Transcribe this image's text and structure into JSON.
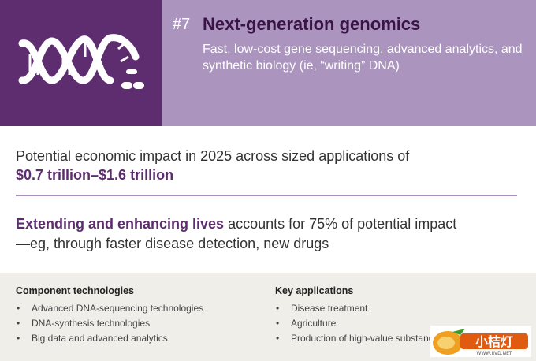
{
  "header": {
    "number": "#7",
    "title": "Next-generation genomics",
    "subtitle": "Fast, low-cost gene sequencing, advanced analytics, and synthetic biology (ie, “writing” DNA)",
    "icon": "dna-pills-icon",
    "colors": {
      "dark_purple": "#5e2d70",
      "light_purple": "#ab94bd"
    }
  },
  "impact": {
    "text": "Potential economic impact in 2025 across sized applications of",
    "value": "$0.7 trillion–$1.6 trillion"
  },
  "lives": {
    "bold": "Extending and enhancing lives",
    "rest": " accounts for 75% of potential impact—eg, through faster disease detection, new drugs"
  },
  "components": {
    "heading": "Component technologies",
    "items": [
      "Advanced DNA-sequencing technologies",
      "DNA-synthesis technologies",
      "Big data and advanced analytics"
    ]
  },
  "applications": {
    "heading": "Key applications",
    "items": [
      "Disease treatment",
      "Agriculture",
      "Production of high-value substances"
    ]
  },
  "watermark": {
    "text": "小桔灯",
    "url": "WWW.IIVD.NET"
  }
}
